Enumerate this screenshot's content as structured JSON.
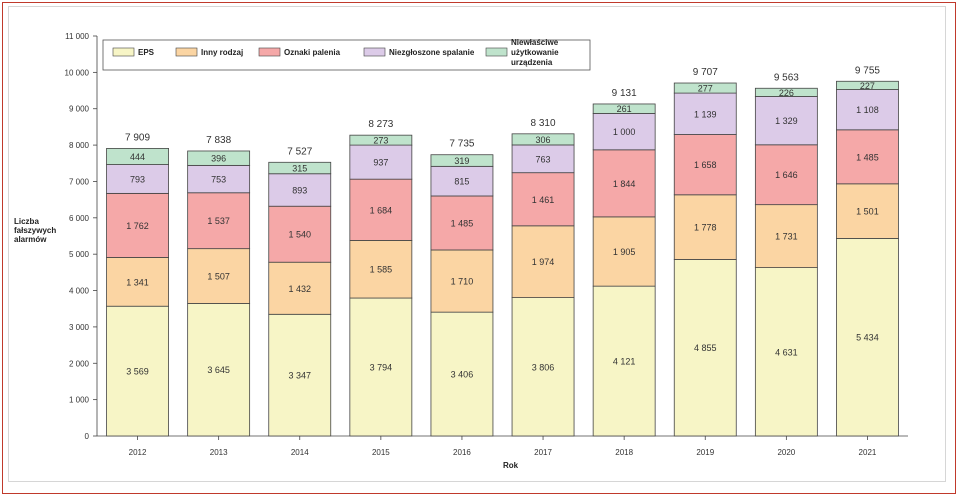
{
  "chart_data": {
    "type": "bar",
    "stacked": true,
    "categories": [
      "2012",
      "2013",
      "2014",
      "2015",
      "2016",
      "2017",
      "2018",
      "2019",
      "2020",
      "2021"
    ],
    "series": [
      {
        "name": "EPS",
        "color": "#f7f5c6",
        "values": [
          3569,
          3645,
          3347,
          3794,
          3406,
          3806,
          4121,
          4855,
          4631,
          5434
        ],
        "labels": [
          "3 569",
          "3 645",
          "3 347",
          "3 794",
          "3 406",
          "3 806",
          "4 121",
          "4 855",
          "4 631",
          "5 434"
        ]
      },
      {
        "name": "Inny rodzaj",
        "color": "#fbd5a3",
        "values": [
          1341,
          1507,
          1432,
          1585,
          1710,
          1974,
          1905,
          1778,
          1731,
          1501
        ],
        "labels": [
          "1 341",
          "1 507",
          "1 432",
          "1 585",
          "1 710",
          "1 974",
          "1 905",
          "1 778",
          "1 731",
          "1 501"
        ]
      },
      {
        "name": "Oznaki palenia",
        "color": "#f5a8a8",
        "values": [
          1762,
          1537,
          1540,
          1684,
          1485,
          1461,
          1844,
          1658,
          1646,
          1485
        ],
        "labels": [
          "1 762",
          "1 537",
          "1 540",
          "1 684",
          "1 485",
          "1 461",
          "1 844",
          "1 658",
          "1 646",
          "1 485"
        ]
      },
      {
        "name": "Niezgłoszone spalanie",
        "color": "#dccbe8",
        "values": [
          793,
          753,
          893,
          937,
          815,
          763,
          1000,
          1139,
          1329,
          1108
        ],
        "labels": [
          "793",
          "753",
          "893",
          "937",
          "815",
          "763",
          "1 000",
          "1 139",
          "1 329",
          "1 108"
        ]
      },
      {
        "name": "Niewłaściwe użytkowanie urządzenia",
        "color": "#bfe3cc",
        "values": [
          444,
          396,
          315,
          273,
          319,
          306,
          261,
          277,
          226,
          227
        ],
        "labels": [
          "444",
          "396",
          "315",
          "273",
          "319",
          "306",
          "261",
          "277",
          "226",
          "227"
        ]
      }
    ],
    "totals": [
      7909,
      7838,
      7527,
      8273,
      7735,
      8310,
      9131,
      9707,
      9563,
      9755
    ],
    "total_labels": [
      "7 909",
      "7 838",
      "7 527",
      "8 273",
      "7 735",
      "8 310",
      "9 131",
      "9 707",
      "9 563",
      "9 755"
    ],
    "yticks": [
      0,
      1000,
      2000,
      3000,
      4000,
      5000,
      6000,
      7000,
      8000,
      9000,
      10000,
      11000
    ],
    "ytick_labels": [
      "0",
      "1 000",
      "2 000",
      "3 000",
      "4 000",
      "5 000",
      "6 000",
      "7 000",
      "8 000",
      "9 000",
      "10 000",
      "11 000"
    ],
    "ylim": [
      0,
      11000
    ],
    "ylabel_lines": [
      "Liczba",
      "fałszywych",
      "alarmów"
    ],
    "xlabel": "Rok",
    "legend_lines": {
      "4": [
        "Niewłaściwe",
        "użytkowanie",
        "urządzenia"
      ]
    }
  }
}
